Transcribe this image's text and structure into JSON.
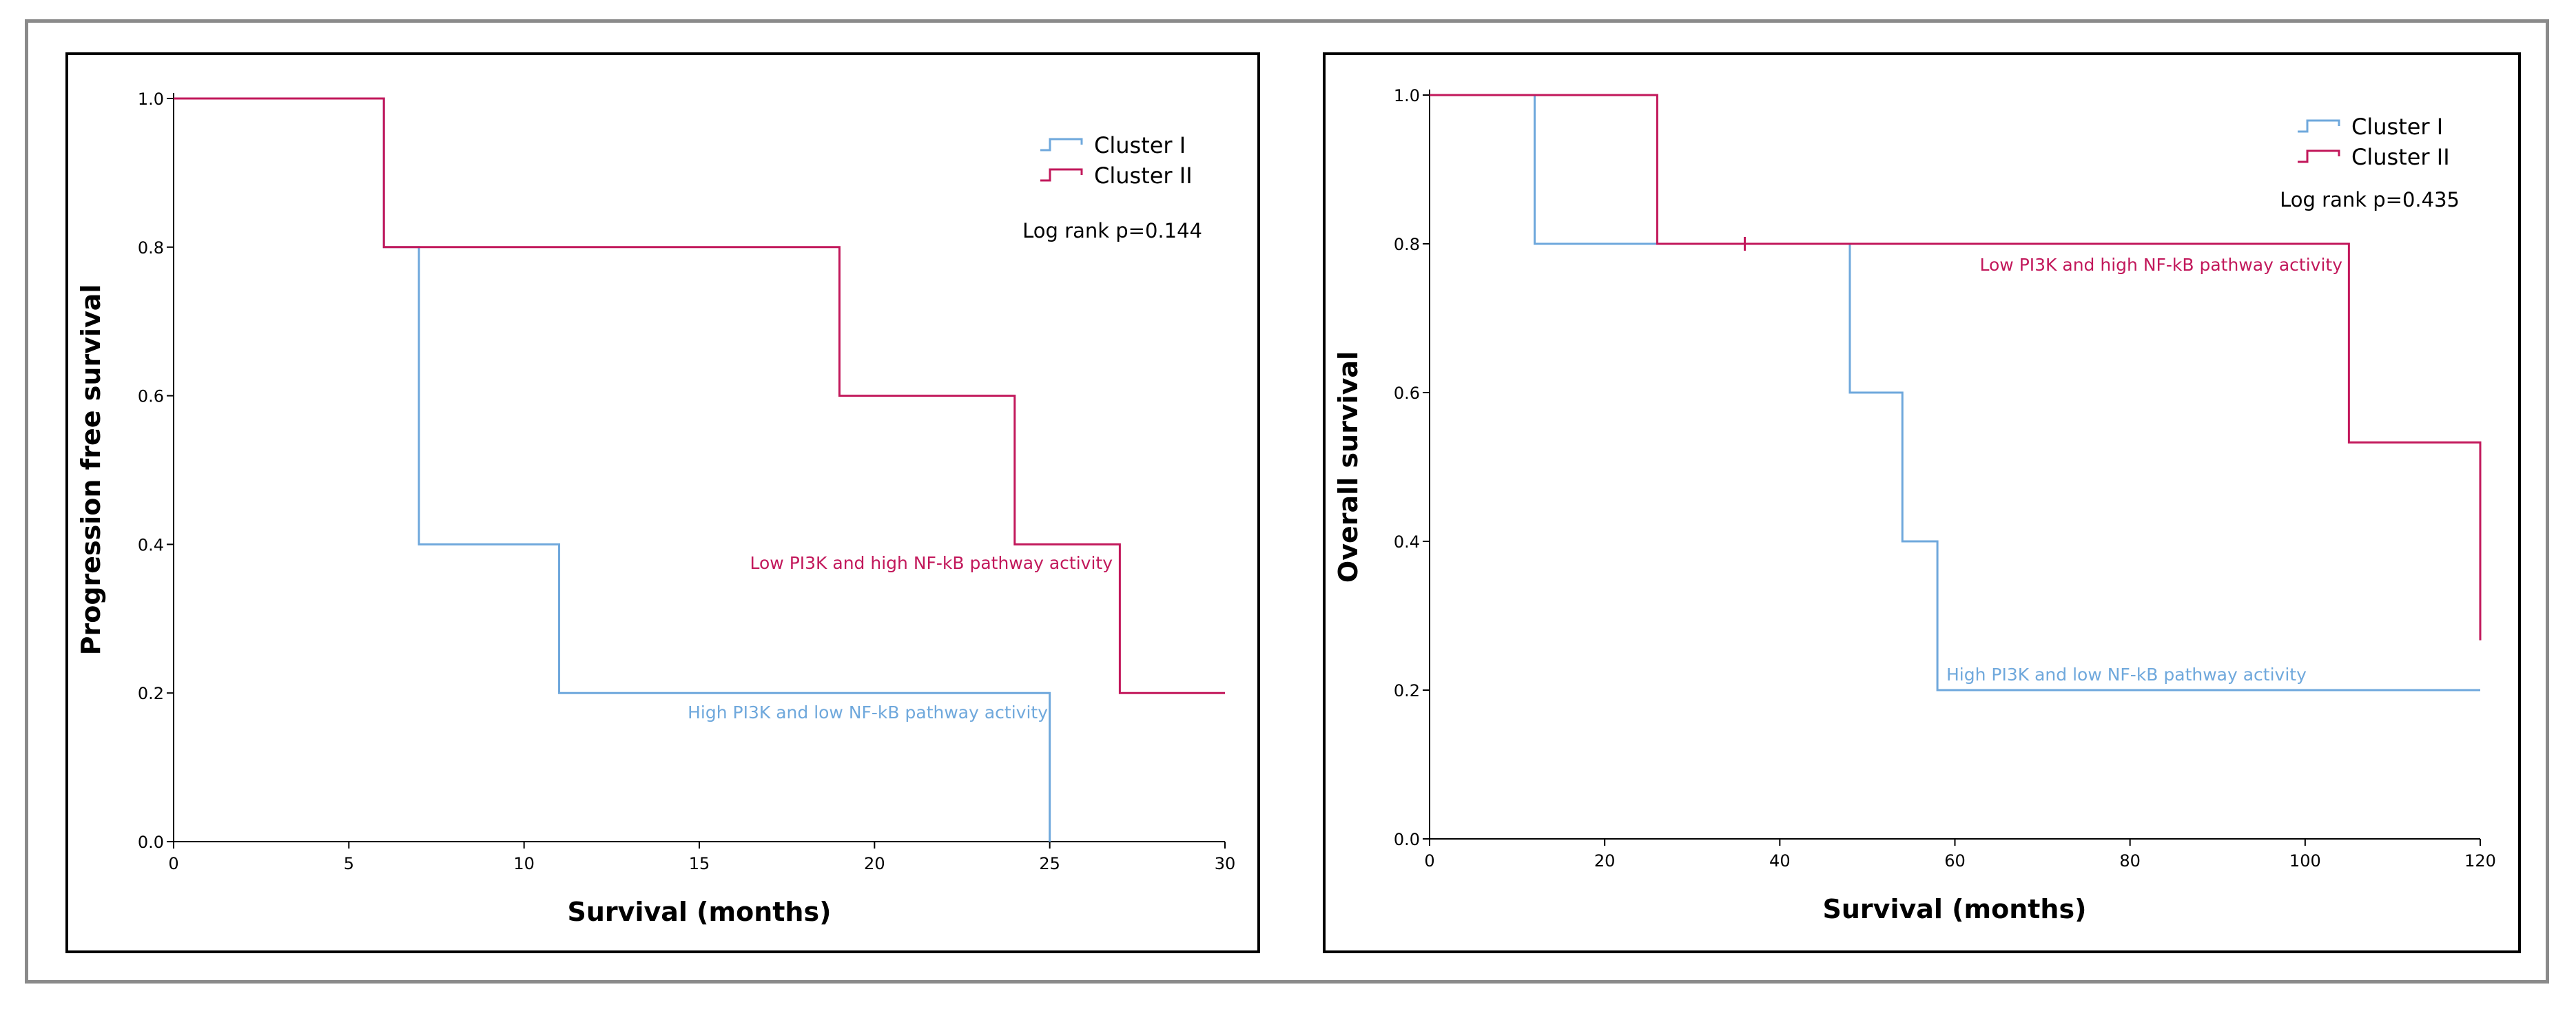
{
  "colors": {
    "cluster1": "#6fa8dc",
    "cluster2": "#c2185b"
  },
  "chart_data": [
    {
      "type": "line",
      "subtype": "kaplan-meier",
      "xlabel": "Survival (months)",
      "ylabel": "Progression free survival",
      "xlim": [
        0,
        30
      ],
      "ylim": [
        0,
        1
      ],
      "xticks": [
        0,
        5,
        10,
        15,
        20,
        25,
        30
      ],
      "yticks": [
        0,
        0.2,
        0.4,
        0.6,
        0.8,
        1.0
      ],
      "xtick_labels": [
        "0",
        "5",
        "10",
        "15",
        "20",
        "25",
        "30"
      ],
      "ytick_labels": [
        "0.0",
        "0.2",
        "0.4",
        "0.6",
        "0.8",
        "1.0"
      ],
      "legend": [
        "Cluster I",
        "Cluster II"
      ],
      "legend_position": "top-right",
      "logrank": "Log rank p=0.144",
      "series": [
        {
          "name": "Cluster I",
          "annotation": "High PI3K and low NF-kB pathway activity",
          "steps": [
            [
              0,
              1.0
            ],
            [
              6,
              0.8
            ],
            [
              7,
              0.4
            ],
            [
              11,
              0.2
            ],
            [
              25,
              0.0
            ]
          ],
          "end_x": 25,
          "censored": []
        },
        {
          "name": "Cluster II",
          "annotation": "Low PI3K and high NF-kB pathway activity",
          "steps": [
            [
              0,
              1.0
            ],
            [
              6,
              0.8
            ],
            [
              19,
              0.6
            ],
            [
              24,
              0.4
            ],
            [
              27,
              0.2
            ]
          ],
          "end_x": 30,
          "censored": []
        }
      ]
    },
    {
      "type": "line",
      "subtype": "kaplan-meier",
      "xlabel": "Survival (months)",
      "ylabel": "Overall survival",
      "xlim": [
        0,
        120
      ],
      "ylim": [
        0,
        1
      ],
      "xticks": [
        0,
        20,
        40,
        60,
        80,
        100,
        120
      ],
      "yticks": [
        0,
        0.2,
        0.4,
        0.6,
        0.8,
        1.0
      ],
      "xtick_labels": [
        "0",
        "20",
        "40",
        "60",
        "80",
        "100",
        "120"
      ],
      "ytick_labels": [
        "0.0",
        "0.2",
        "0.4",
        "0.6",
        "0.8",
        "1.0"
      ],
      "legend": [
        "Cluster I",
        "Cluster II"
      ],
      "legend_position": "top-right",
      "logrank": "Log rank p=0.435",
      "series": [
        {
          "name": "Cluster I",
          "annotation": "High PI3K and low NF-kB pathway activity",
          "steps": [
            [
              0,
              1.0
            ],
            [
              12,
              0.8
            ],
            [
              48,
              0.6
            ],
            [
              54,
              0.4
            ],
            [
              58,
              0.2
            ]
          ],
          "end_x": 120,
          "censored": []
        },
        {
          "name": "Cluster II",
          "annotation": "Low PI3K and high NF-kB pathway activity",
          "steps": [
            [
              0,
              1.0
            ],
            [
              26,
              0.8
            ],
            [
              105,
              0.533
            ],
            [
              120,
              0.267
            ]
          ],
          "end_x": 120,
          "censored": [
            [
              36,
              0.8
            ]
          ]
        }
      ]
    }
  ]
}
